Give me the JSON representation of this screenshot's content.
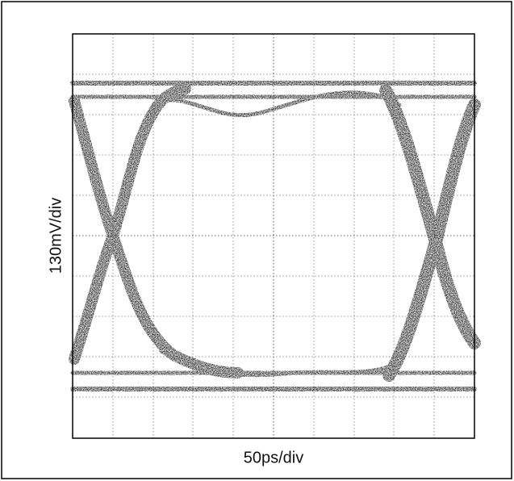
{
  "y_label": "130mV/div",
  "x_label": "50ps/div"
}
